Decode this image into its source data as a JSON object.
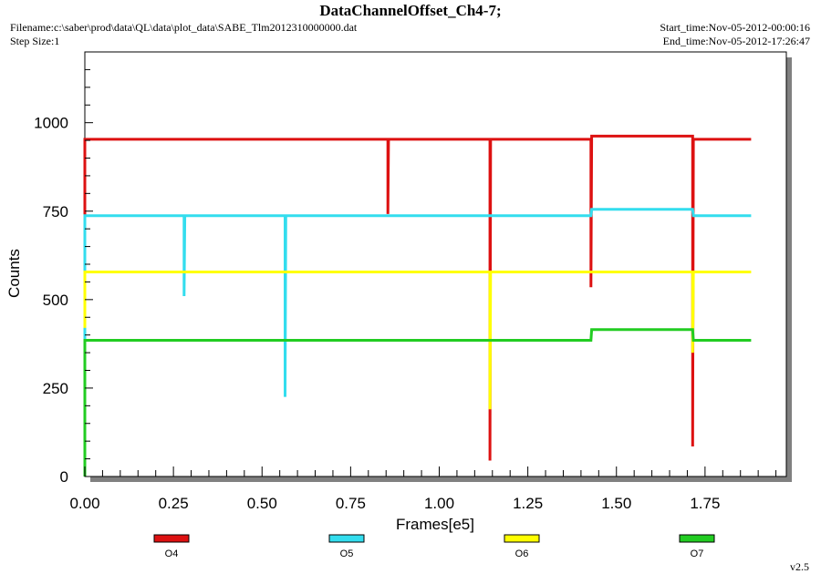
{
  "header": {
    "title": "DataChannelOffset_Ch4-7;",
    "filename": "Filename:c:\\saber\\prod\\data\\QL\\data\\plot_data\\SABE_Tlm2012310000000.dat",
    "step_size": "Step Size:1",
    "start_time": "Start_time:Nov-05-2012-00:00:16",
    "end_time": "End_time:Nov-05-2012-17:26:47"
  },
  "version": "v2.5",
  "chart_data": {
    "type": "line",
    "title": "DataChannelOffset_Ch4-7;",
    "xlabel": "Frames[e5]",
    "ylabel": "Counts",
    "xlim": [
      0,
      2.0
    ],
    "ylim": [
      0,
      1200
    ],
    "x_ticks": [
      "0.00",
      "0.25",
      "0.50",
      "0.75",
      "1.00",
      "1.25",
      "1.50",
      "1.75"
    ],
    "y_ticks": [
      "0",
      "250",
      "500",
      "750",
      "1000"
    ],
    "grid": false,
    "legend_position": "bottom",
    "series": [
      {
        "name": "O4",
        "color": "#dd1111",
        "points": [
          [
            0,
            450
          ],
          [
            0,
            953
          ],
          [
            0.855,
            953
          ],
          [
            0.855,
            742
          ],
          [
            0.857,
            953
          ],
          [
            1.143,
            953
          ],
          [
            1.143,
            45
          ],
          [
            1.145,
            953
          ],
          [
            1.428,
            953
          ],
          [
            1.428,
            535
          ],
          [
            1.43,
            962
          ],
          [
            1.715,
            962
          ],
          [
            1.715,
            85
          ],
          [
            1.717,
            953
          ],
          [
            1.88,
            953
          ]
        ]
      },
      {
        "name": "O5",
        "color": "#33ddee",
        "points": [
          [
            0,
            300
          ],
          [
            0,
            737
          ],
          [
            0.28,
            737
          ],
          [
            0.28,
            510
          ],
          [
            0.282,
            737
          ],
          [
            0.565,
            737
          ],
          [
            0.565,
            225
          ],
          [
            0.567,
            737
          ],
          [
            1.428,
            737
          ],
          [
            1.43,
            755
          ],
          [
            1.715,
            755
          ],
          [
            1.717,
            737
          ],
          [
            1.88,
            737
          ]
        ]
      },
      {
        "name": "O6",
        "color": "#ffff00",
        "points": [
          [
            0,
            420
          ],
          [
            0,
            578
          ],
          [
            1.143,
            578
          ],
          [
            1.143,
            190
          ],
          [
            1.145,
            578
          ],
          [
            1.715,
            578
          ],
          [
            1.715,
            350
          ],
          [
            1.717,
            578
          ],
          [
            1.88,
            578
          ]
        ]
      },
      {
        "name": "O7",
        "color": "#22cc22",
        "points": [
          [
            0,
            0
          ],
          [
            0,
            385
          ],
          [
            1.428,
            385
          ],
          [
            1.43,
            415
          ],
          [
            1.715,
            415
          ],
          [
            1.717,
            385
          ],
          [
            1.88,
            385
          ]
        ]
      }
    ]
  }
}
